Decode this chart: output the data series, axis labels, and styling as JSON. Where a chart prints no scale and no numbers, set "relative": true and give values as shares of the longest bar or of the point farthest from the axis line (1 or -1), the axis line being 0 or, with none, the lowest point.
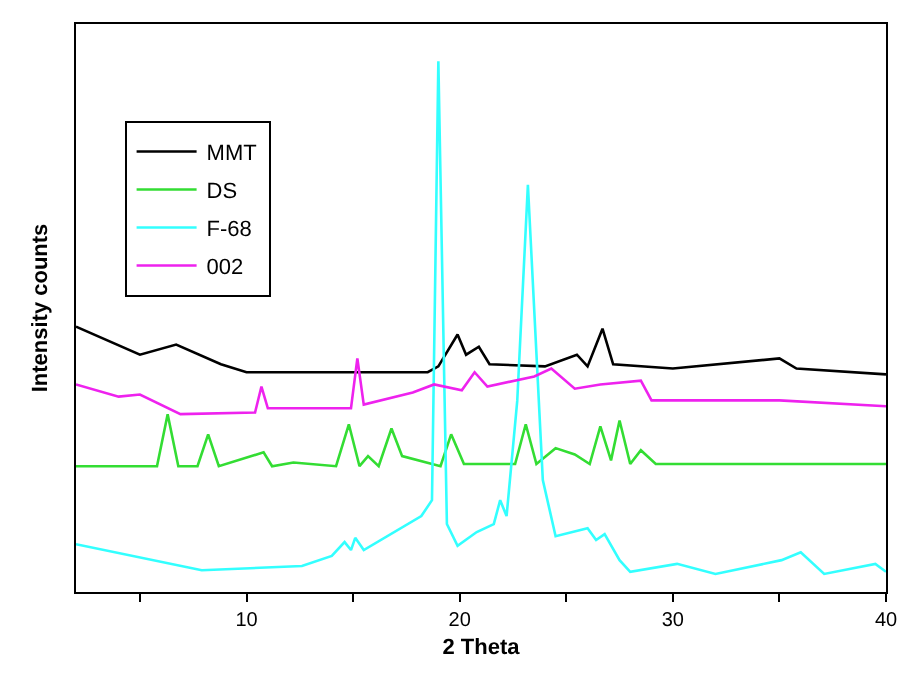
{
  "chart_data": {
    "type": "line",
    "relative": true,
    "xlabel": "2 Theta",
    "ylabel": "Intensity counts",
    "xlim": [
      2,
      40
    ],
    "xticks": [
      {
        "value": 5,
        "label": null
      },
      10,
      {
        "value": 15,
        "label": null
      },
      20,
      {
        "value": 25,
        "label": null
      },
      30,
      {
        "value": 35,
        "label": null
      },
      40
    ],
    "legend": "top left",
    "marker": "none",
    "line_style": "solid",
    "series": [
      {
        "name": "MMT",
        "color": "#000000",
        "x": [
          2,
          5,
          6.7,
          8.8,
          10,
          14,
          18.5,
          19,
          19.9,
          20.3,
          20.9,
          21.4,
          24,
          25.5,
          26,
          26.7,
          27.2,
          30,
          35,
          35.8,
          40
        ],
        "values": [
          0.5,
          0.447,
          0.466,
          0.429,
          0.414,
          0.414,
          0.414,
          0.425,
          0.485,
          0.447,
          0.462,
          0.429,
          0.425,
          0.447,
          0.425,
          0.496,
          0.429,
          0.421,
          0.44,
          0.421,
          0.41
        ]
      },
      {
        "name": "DS",
        "color": "#33dd33",
        "x": [
          2,
          5.8,
          6.3,
          6.8,
          7.7,
          8.2,
          8.7,
          10.8,
          11.2,
          12.2,
          14.2,
          14.8,
          15.3,
          15.7,
          16.2,
          16.8,
          17.3,
          19.1,
          19.6,
          20.2,
          22.6,
          23.1,
          23.6,
          24.5,
          25.4,
          26.1,
          26.6,
          27.1,
          27.5,
          28,
          28.5,
          29.2,
          40
        ],
        "values": [
          0.237,
          0.237,
          0.335,
          0.237,
          0.237,
          0.297,
          0.237,
          0.263,
          0.237,
          0.244,
          0.237,
          0.316,
          0.237,
          0.256,
          0.237,
          0.308,
          0.256,
          0.237,
          0.297,
          0.241,
          0.241,
          0.316,
          0.241,
          0.271,
          0.259,
          0.241,
          0.312,
          0.248,
          0.323,
          0.241,
          0.267,
          0.241,
          0.241
        ]
      },
      {
        "name": "F-68",
        "color": "#33ffff",
        "x": [
          2,
          7.9,
          12.6,
          14,
          14.6,
          14.9,
          15.1,
          15.5,
          18.2,
          18.7,
          19,
          19.4,
          19.9,
          20.8,
          21.6,
          21.9,
          22.2,
          22.7,
          23.2,
          23.9,
          24.5,
          26,
          26.4,
          26.8,
          27.5,
          28,
          30.2,
          32,
          35.1,
          36,
          37.1,
          39.5,
          40
        ],
        "values": [
          0.09,
          0.041,
          0.049,
          0.068,
          0.094,
          0.079,
          0.102,
          0.079,
          0.143,
          0.173,
          1,
          0.128,
          0.087,
          0.113,
          0.128,
          0.173,
          0.143,
          0.36,
          0.767,
          0.211,
          0.105,
          0.12,
          0.098,
          0.109,
          0.06,
          0.038,
          0.053,
          0.034,
          0.06,
          0.075,
          0.034,
          0.053,
          0.038
        ]
      },
      {
        "name": "002",
        "color": "#ee22ee",
        "x": [
          2,
          4,
          5,
          6.9,
          10.4,
          10.7,
          11,
          14.9,
          15.2,
          15.5,
          17.8,
          18.8,
          20.1,
          20.7,
          21.3,
          23.5,
          24.3,
          25.4,
          26.6,
          28.5,
          29,
          35,
          40
        ],
        "values": [
          0.391,
          0.368,
          0.372,
          0.335,
          0.338,
          0.387,
          0.346,
          0.346,
          0.44,
          0.353,
          0.376,
          0.391,
          0.38,
          0.414,
          0.387,
          0.406,
          0.421,
          0.383,
          0.391,
          0.398,
          0.361,
          0.361,
          0.35
        ]
      }
    ]
  }
}
